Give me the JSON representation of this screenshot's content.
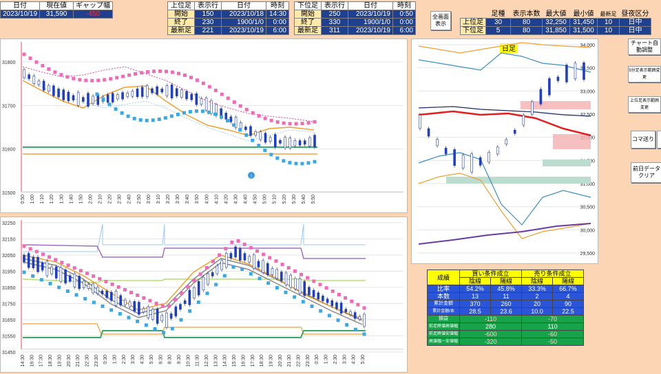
{
  "header": {
    "summary": {
      "headers": [
        "日付",
        "現在値",
        "ギャップ幅"
      ],
      "values": [
        "2023/10/19",
        "31,590",
        "-450"
      ]
    },
    "upper": {
      "col_headers": [
        "上位足",
        "表示行",
        "日付",
        "時刻"
      ],
      "rows": [
        {
          "label": "開始",
          "row": "150",
          "date": "2023/10/18",
          "time": "14:30"
        },
        {
          "label": "終了",
          "row": "230",
          "date": "1900/1/0",
          "time": "0:00"
        },
        {
          "label": "最新足",
          "row": "221",
          "date": "2023/10/19",
          "time": "6:00"
        }
      ]
    },
    "lower": {
      "col_headers": [
        "下位足",
        "表示行",
        "日付",
        "時刻"
      ],
      "rows": [
        {
          "label": "開始",
          "row": "250",
          "date": "2023/10/19",
          "time": "0:50"
        },
        {
          "label": "終了",
          "row": "330",
          "date": "1900/1/0",
          "time": "0:00"
        },
        {
          "label": "最新足",
          "row": "311",
          "date": "2023/10/19",
          "time": "6:00"
        }
      ]
    },
    "fullscreen_button": "全画面\n表示",
    "right_table": {
      "col_headers": [
        "足種",
        "表示本数",
        "最大値",
        "最小値",
        "最新足",
        "昼夜区分"
      ],
      "rows": [
        {
          "label": "上位足",
          "kind": "30",
          "count": "80",
          "max": "32,250",
          "min": "31,450",
          "latest": "10",
          "session": "日中"
        },
        {
          "label": "下位足",
          "kind": "5",
          "count": "80",
          "max": "31,850",
          "min": "31,500",
          "latest": "10",
          "session": "日中"
        }
      ]
    }
  },
  "buttons": {
    "auto_chart": "チャート自動調整",
    "five_min_range": "5分足表示範囲変更",
    "upper_range": "上位足表示範囲変更",
    "frame_step": "コマ送り",
    "clear_prev": "前日データ\nクリア"
  },
  "chart_upper_5m": {
    "y_ticks": [
      "31800",
      "31700",
      "31600",
      "31500"
    ],
    "x_ticks": [
      "0:50",
      "1:00",
      "1:10",
      "1:20",
      "1:30",
      "1:40",
      "1:50",
      "2:00",
      "2:10",
      "2:20",
      "2:30",
      "2:40",
      "2:50",
      "3:00",
      "3:10",
      "3:20",
      "3:30",
      "3:40",
      "3:50",
      "4:00",
      "4:10",
      "4:20",
      "4:30",
      "4:40",
      "4:50",
      "5:00",
      "5:10",
      "5:20",
      "5:30",
      "5:40",
      "5:50"
    ]
  },
  "chart_lower_30m": {
    "y_ticks": [
      "32250",
      "32150",
      "32050",
      "31950",
      "31850",
      "31750",
      "31650",
      "31550",
      "31450"
    ],
    "x_ticks": [
      "14:30",
      "16:30",
      "17:30",
      "18:30",
      "19:30",
      "20:30",
      "21:30",
      "22:30",
      "23:30",
      "0:30",
      "1:30",
      "2:30",
      "3:30",
      "4:30",
      "5:30",
      "6:30",
      "8:30",
      "9:30",
      "10:30",
      "11:30",
      "12:30",
      "13:30",
      "14:30",
      "15:30",
      "16:30",
      "17:30",
      "18:30",
      "19:30",
      "20:30",
      "21:30",
      "22:30",
      "23:30",
      "0:30",
      "1:30",
      "2:30",
      "3:30",
      "4:30",
      "5:30"
    ]
  },
  "chart_daily": {
    "title": "日足",
    "y_ticks": [
      "34,000",
      "33,500",
      "33,000",
      "32,500",
      "32,000",
      "31,500",
      "31,000",
      "30,500",
      "30,000",
      "29,500"
    ]
  },
  "results": {
    "title": "成績",
    "buy_header": "買い条件成立",
    "sell_header": "売り条件成立",
    "sub_headers": [
      "陰線",
      "陽線",
      "陰線",
      "陽線"
    ],
    "rows": [
      {
        "label": "比率",
        "values": [
          "54.2%",
          "45.8%",
          "33.3%",
          "66.7%"
        ]
      },
      {
        "label": "本数",
        "values": [
          "13",
          "11",
          "2",
          "4"
        ]
      },
      {
        "label": "累計金額",
        "values": [
          "370",
          "260",
          "20",
          "90"
        ]
      },
      {
        "label": "累計金額/本",
        "values": [
          "28.5",
          "23.6",
          "10.0",
          "22.5"
        ]
      }
    ],
    "summary_rows": [
      {
        "label": "損益",
        "buy": "-110",
        "sell": "-70"
      },
      {
        "label": "前足終値高値幅",
        "buy": "280",
        "sell": "110"
      },
      {
        "label": "前足終値安値幅",
        "buy": "-600",
        "sell": "-60"
      },
      {
        "label": "高値幅ー安値幅",
        "buy": "-320",
        "sell": "-50"
      }
    ]
  }
}
